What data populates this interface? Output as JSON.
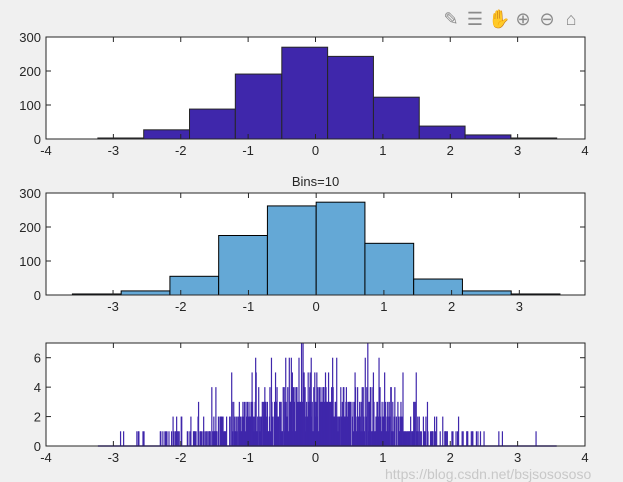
{
  "toolbar": {
    "icons": [
      "edit-plot-icon",
      "legend-icon",
      "pan-hand-icon",
      "zoom-in-icon",
      "zoom-out-icon",
      "home-icon"
    ]
  },
  "watermark": "https://blog.csdn.net/bsjsosososo",
  "chart_data": [
    {
      "type": "bar",
      "title": "",
      "xlim": [
        -4,
        4
      ],
      "ylim": [
        0,
        300
      ],
      "xticks": [
        "-4",
        "-3",
        "-2",
        "-1",
        "0",
        "1",
        "2",
        "3",
        "4"
      ],
      "yticks": [
        "0",
        "100",
        "200",
        "300"
      ],
      "bin_edges": [
        -3.23,
        -2.55,
        -1.87,
        -1.19,
        -0.5,
        0.18,
        0.86,
        1.54,
        2.22,
        2.9,
        3.58
      ],
      "values": [
        3,
        27,
        88,
        191,
        270,
        243,
        123,
        38,
        12,
        3
      ],
      "color": "#3f27ab"
    },
    {
      "type": "bar",
      "title": "Bins=10",
      "xlim": [
        -3.99,
        3.97
      ],
      "ylim": [
        0,
        300
      ],
      "xticks": [
        "-3",
        "-2",
        "-1",
        "0",
        "1",
        "2",
        "3"
      ],
      "yticks": [
        "0",
        "100",
        "200",
        "300"
      ],
      "bin_edges": [
        -3.6,
        -2.88,
        -2.16,
        -1.44,
        -0.72,
        0,
        0.72,
        1.44,
        2.16,
        2.88,
        3.6
      ],
      "values": [
        3,
        12,
        55,
        175,
        262,
        273,
        152,
        47,
        12,
        3
      ],
      "color": "#64a8d6"
    },
    {
      "type": "bar",
      "title": "",
      "xlim": [
        -4,
        4
      ],
      "ylim": [
        0,
        7
      ],
      "xticks": [
        "-4",
        "-3",
        "-2",
        "-1",
        "0",
        "1",
        "2",
        "3",
        "4"
      ],
      "yticks": [
        "0",
        "2",
        "4",
        "6"
      ],
      "data_range": [
        -3.23,
        3.58
      ],
      "max_count": 7,
      "color": "#3f27ab"
    }
  ]
}
